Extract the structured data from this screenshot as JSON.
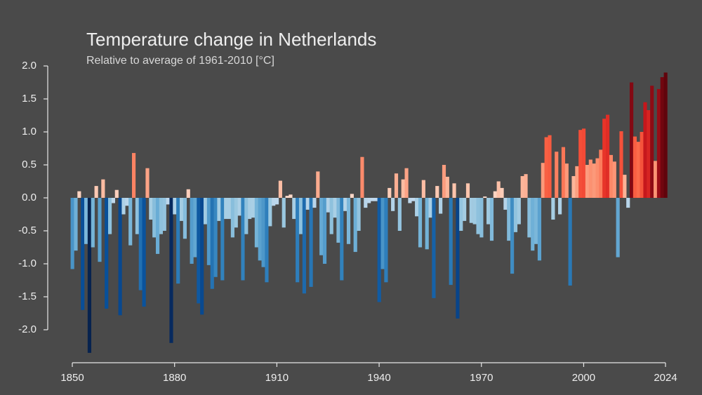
{
  "chart_data": {
    "type": "bar",
    "title": "Temperature change in Netherlands",
    "subtitle": "Relative to average of 1961-2010  [°C]",
    "x": [
      1850,
      1851,
      1852,
      1853,
      1854,
      1855,
      1856,
      1857,
      1858,
      1859,
      1860,
      1861,
      1862,
      1863,
      1864,
      1865,
      1866,
      1867,
      1868,
      1869,
      1870,
      1871,
      1872,
      1873,
      1874,
      1875,
      1876,
      1877,
      1878,
      1879,
      1880,
      1881,
      1882,
      1883,
      1884,
      1885,
      1886,
      1887,
      1888,
      1889,
      1890,
      1891,
      1892,
      1893,
      1894,
      1895,
      1896,
      1897,
      1898,
      1899,
      1900,
      1901,
      1902,
      1903,
      1904,
      1905,
      1906,
      1907,
      1908,
      1909,
      1910,
      1911,
      1912,
      1913,
      1914,
      1915,
      1916,
      1917,
      1918,
      1919,
      1920,
      1921,
      1922,
      1923,
      1924,
      1925,
      1926,
      1927,
      1928,
      1929,
      1930,
      1931,
      1932,
      1933,
      1934,
      1935,
      1936,
      1937,
      1938,
      1939,
      1940,
      1941,
      1942,
      1943,
      1944,
      1945,
      1946,
      1947,
      1948,
      1949,
      1950,
      1951,
      1952,
      1953,
      1954,
      1955,
      1956,
      1957,
      1958,
      1959,
      1960,
      1961,
      1962,
      1963,
      1964,
      1965,
      1966,
      1967,
      1968,
      1969,
      1970,
      1971,
      1972,
      1973,
      1974,
      1975,
      1976,
      1977,
      1978,
      1979,
      1980,
      1981,
      1982,
      1983,
      1984,
      1985,
      1986,
      1987,
      1988,
      1989,
      1990,
      1991,
      1992,
      1993,
      1994,
      1995,
      1996,
      1997,
      1998,
      1999,
      2000,
      2001,
      2002,
      2003,
      2004,
      2005,
      2006,
      2007,
      2008,
      2009,
      2010,
      2011,
      2012,
      2013,
      2014,
      2015,
      2016,
      2017,
      2018,
      2019,
      2020,
      2021,
      2022,
      2023,
      2024
    ],
    "values": [
      -1.08,
      -0.8,
      0.1,
      -1.7,
      -0.7,
      -2.35,
      -0.75,
      0.18,
      -0.97,
      0.28,
      -1.68,
      -0.55,
      -0.08,
      0.12,
      -1.78,
      -0.25,
      -0.12,
      -0.72,
      0.68,
      -0.55,
      -1.4,
      -1.65,
      0.45,
      -0.33,
      -0.6,
      -0.85,
      -0.55,
      -0.5,
      -0.1,
      -2.2,
      -0.25,
      -1.3,
      -0.35,
      -0.62,
      0.13,
      -1.0,
      -0.9,
      -1.6,
      -1.77,
      -0.4,
      -1.02,
      -1.38,
      -1.2,
      -0.35,
      -1.25,
      -0.32,
      -0.32,
      -0.6,
      -0.45,
      -0.27,
      -1.25,
      -0.55,
      -0.32,
      -0.3,
      -0.75,
      -0.95,
      -1.05,
      -1.28,
      -0.43,
      -0.12,
      -0.1,
      0.26,
      -0.45,
      0.03,
      0.05,
      -0.32,
      -1.28,
      -0.55,
      -1.45,
      -0.18,
      -1.35,
      -0.15,
      0.4,
      -0.87,
      -1.0,
      -0.22,
      -0.55,
      -0.3,
      -0.68,
      -1.25,
      -0.2,
      -0.7,
      0.06,
      -0.82,
      -0.5,
      0.62,
      -0.15,
      -0.08,
      -0.05,
      -0.05,
      -1.58,
      -1.08,
      -1.28,
      0.15,
      -0.2,
      0.37,
      -0.5,
      0.28,
      0.45,
      -0.08,
      -0.05,
      -0.28,
      -0.75,
      0.27,
      -0.78,
      -0.3,
      -1.52,
      0.18,
      -0.24,
      0.5,
      0.32,
      -1.32,
      0.22,
      -1.83,
      -0.5,
      -0.35,
      0.22,
      -0.38,
      -0.4,
      -0.55,
      -0.6,
      0.02,
      -0.4,
      -0.65,
      0.1,
      0.25,
      0.15,
      -0.18,
      -0.65,
      -1.15,
      -0.52,
      -0.4,
      0.33,
      0.36,
      -0.6,
      -0.8,
      -0.7,
      -0.95,
      0.53,
      0.92,
      0.95,
      -0.33,
      0.7,
      -0.25,
      0.77,
      0.52,
      -1.33,
      0.33,
      0.48,
      1.03,
      1.05,
      0.5,
      0.58,
      0.52,
      0.6,
      0.73,
      1.2,
      1.26,
      0.65,
      0.55,
      -0.9,
      1.01,
      0.35,
      -0.15,
      1.75,
      0.93,
      0.85,
      1.0,
      1.45,
      1.33,
      1.7,
      0.56,
      1.65,
      1.83,
      1.9
    ],
    "colormap": {
      "negative": [
        "#c6dbef",
        "#9ecae1",
        "#6baed6",
        "#3182bd",
        "#08519c",
        "#08306b",
        "#061c40"
      ],
      "positive": [
        "#fee0d2",
        "#fcbba1",
        "#fc9272",
        "#fb6a4a",
        "#ef3b2c",
        "#cb181d",
        "#8b0a14",
        "#4a0008"
      ]
    },
    "xlim": [
      1850,
      2024
    ],
    "xticks": [
      1850,
      1880,
      1910,
      1940,
      1970,
      2000,
      2024
    ],
    "ylim": [
      -2.5,
      2.0
    ],
    "yticks": [
      {
        "value": -2,
        "label": "-2.0"
      },
      -1.5,
      {
        "value": -1,
        "label": "-1.0"
      },
      -0.5,
      {
        "value": 0,
        "label": "0.0"
      },
      0.5,
      {
        "value": 1,
        "label": "1.0"
      },
      1.5,
      {
        "value": 2,
        "label": "2.0"
      }
    ]
  }
}
